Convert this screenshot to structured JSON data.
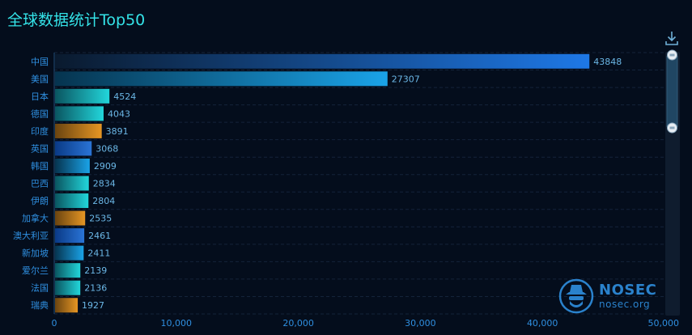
{
  "title": "全球数据统计Top50",
  "toolbar": {
    "download_icon": "download-icon"
  },
  "watermark": {
    "brand": "NOSEC",
    "url": "nosec.org",
    "logo_icon": "spy-hat-icon"
  },
  "colors": {
    "background": "#040d1c",
    "title": "#34e3e8",
    "axis_label": "#2f8fe0",
    "value_label": "#6bb7e6",
    "gradient_blue": [
      "#0a1a2e",
      "#1e78e6"
    ],
    "gradient_sky": [
      "#06344f",
      "#1aa3e8"
    ],
    "gradient_cyan": [
      "#0a5560",
      "#22d6db"
    ],
    "gradient_orange": [
      "#6a4410",
      "#e69624"
    ],
    "gradient_deepblue": [
      "#0a3a86",
      "#2a74d6"
    ]
  },
  "chart_data": {
    "type": "bar",
    "orientation": "horizontal",
    "categories": [
      "中国",
      "美国",
      "日本",
      "德国",
      "印度",
      "英国",
      "韩国",
      "巴西",
      "伊朗",
      "加拿大",
      "澳大利亚",
      "新加坡",
      "爱尔兰",
      "法国",
      "瑞典"
    ],
    "values": [
      43848,
      27307,
      4524,
      4043,
      3891,
      3068,
      2909,
      2834,
      2804,
      2535,
      2461,
      2411,
      2139,
      2136,
      1927
    ],
    "bar_styles": [
      "blue",
      "sky",
      "cyan",
      "cyan",
      "orange",
      "deepblue",
      "sky",
      "cyan",
      "cyan",
      "orange",
      "deepblue",
      "sky",
      "cyan",
      "cyan",
      "orange"
    ],
    "xlim": [
      0,
      50000
    ],
    "x_ticks": [
      0,
      10000,
      20000,
      30000,
      40000,
      50000
    ],
    "x_tick_labels": [
      "0",
      "10,000",
      "20,000",
      "30,000",
      "40,000",
      "50,000"
    ],
    "grid": true,
    "data_zoom": {
      "orientation": "vertical",
      "position": "right"
    }
  }
}
